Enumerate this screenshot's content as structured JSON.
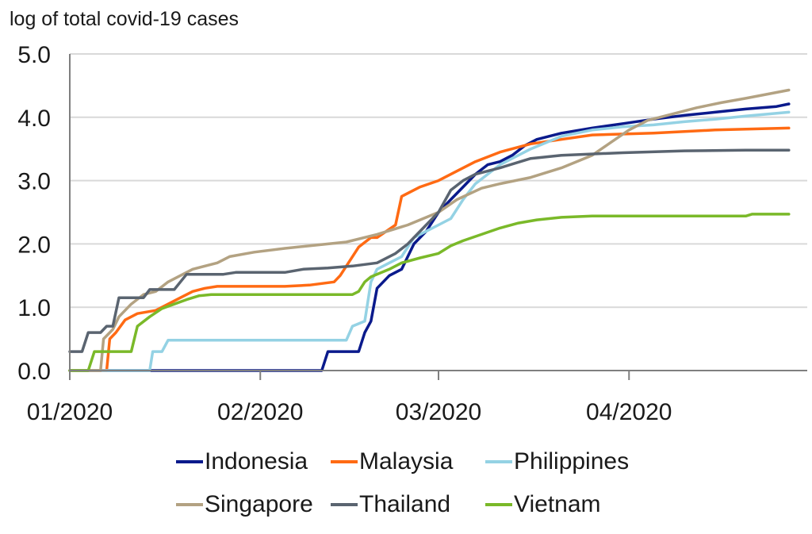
{
  "chart_data": {
    "type": "line",
    "ylabel": "log of total covid-19 cases",
    "xlabel": "",
    "title": "",
    "ylim": [
      0,
      5
    ],
    "yticks": [
      "0.0",
      "1.0",
      "2.0",
      "3.0",
      "4.0",
      "5.0"
    ],
    "x_domain_days": [
      0,
      120
    ],
    "xticks": [
      {
        "label": "01/2020",
        "day": 0
      },
      {
        "label": "02/2020",
        "day": 31
      },
      {
        "label": "03/2020",
        "day": 60
      },
      {
        "label": "04/2020",
        "day": 91
      }
    ],
    "grid": true,
    "legend_position": "bottom",
    "series": [
      {
        "name": "Indonesia",
        "color": "#0a1a8c",
        "points": [
          [
            0,
            0
          ],
          [
            41,
            0
          ],
          [
            42,
            0.3
          ],
          [
            47,
            0.3
          ],
          [
            48,
            0.6
          ],
          [
            49,
            0.78
          ],
          [
            50,
            1.3
          ],
          [
            52,
            1.5
          ],
          [
            54,
            1.6
          ],
          [
            56,
            2.0
          ],
          [
            58,
            2.2
          ],
          [
            60,
            2.5
          ],
          [
            62,
            2.7
          ],
          [
            64,
            2.9
          ],
          [
            66,
            3.1
          ],
          [
            68,
            3.25
          ],
          [
            70,
            3.3
          ],
          [
            72,
            3.4
          ],
          [
            74,
            3.55
          ],
          [
            76,
            3.65
          ],
          [
            80,
            3.75
          ],
          [
            85,
            3.83
          ],
          [
            90,
            3.9
          ],
          [
            95,
            3.97
          ],
          [
            100,
            4.03
          ],
          [
            105,
            4.08
          ],
          [
            110,
            4.13
          ],
          [
            115,
            4.17
          ],
          [
            117,
            4.21
          ]
        ]
      },
      {
        "name": "Malaysia",
        "color": "#ff6a13",
        "points": [
          [
            0,
            0
          ],
          [
            6,
            0
          ],
          [
            6.5,
            0.5
          ],
          [
            7.5,
            0.6
          ],
          [
            9,
            0.8
          ],
          [
            11,
            0.9
          ],
          [
            14,
            0.95
          ],
          [
            16,
            1.05
          ],
          [
            18,
            1.15
          ],
          [
            20,
            1.25
          ],
          [
            22,
            1.3
          ],
          [
            24,
            1.33
          ],
          [
            35,
            1.33
          ],
          [
            39,
            1.35
          ],
          [
            43,
            1.4
          ],
          [
            44,
            1.5
          ],
          [
            45,
            1.65
          ],
          [
            47,
            1.95
          ],
          [
            49,
            2.1
          ],
          [
            50,
            2.1
          ],
          [
            53,
            2.3
          ],
          [
            54,
            2.75
          ],
          [
            57,
            2.9
          ],
          [
            60,
            3.0
          ],
          [
            63,
            3.15
          ],
          [
            66,
            3.3
          ],
          [
            70,
            3.45
          ],
          [
            75,
            3.58
          ],
          [
            80,
            3.65
          ],
          [
            85,
            3.72
          ],
          [
            95,
            3.75
          ],
          [
            105,
            3.8
          ],
          [
            117,
            3.83
          ]
        ]
      },
      {
        "name": "Philippines",
        "color": "#94d2e4",
        "points": [
          [
            0,
            0
          ],
          [
            13,
            0
          ],
          [
            13.5,
            0.3
          ],
          [
            15,
            0.3
          ],
          [
            16,
            0.48
          ],
          [
            45,
            0.48
          ],
          [
            46,
            0.7
          ],
          [
            48,
            0.78
          ],
          [
            49,
            1.4
          ],
          [
            50,
            1.6
          ],
          [
            52,
            1.7
          ],
          [
            54,
            1.8
          ],
          [
            56,
            2.1
          ],
          [
            58,
            2.2
          ],
          [
            60,
            2.3
          ],
          [
            62,
            2.4
          ],
          [
            64,
            2.7
          ],
          [
            66,
            2.95
          ],
          [
            70,
            3.25
          ],
          [
            75,
            3.5
          ],
          [
            80,
            3.7
          ],
          [
            85,
            3.8
          ],
          [
            90,
            3.85
          ],
          [
            95,
            3.88
          ],
          [
            100,
            3.93
          ],
          [
            105,
            3.97
          ],
          [
            110,
            4.02
          ],
          [
            117,
            4.08
          ]
        ]
      },
      {
        "name": "Singapore",
        "color": "#b3a282",
        "points": [
          [
            0,
            0
          ],
          [
            5,
            0
          ],
          [
            5.5,
            0.5
          ],
          [
            7,
            0.65
          ],
          [
            8,
            0.85
          ],
          [
            10,
            1.05
          ],
          [
            12,
            1.2
          ],
          [
            14,
            1.25
          ],
          [
            16,
            1.4
          ],
          [
            18,
            1.5
          ],
          [
            20,
            1.6
          ],
          [
            24,
            1.7
          ],
          [
            26,
            1.8
          ],
          [
            30,
            1.87
          ],
          [
            35,
            1.93
          ],
          [
            40,
            1.98
          ],
          [
            45,
            2.03
          ],
          [
            50,
            2.15
          ],
          [
            55,
            2.3
          ],
          [
            60,
            2.5
          ],
          [
            63,
            2.7
          ],
          [
            67,
            2.88
          ],
          [
            70,
            2.95
          ],
          [
            75,
            3.05
          ],
          [
            80,
            3.2
          ],
          [
            85,
            3.4
          ],
          [
            88,
            3.6
          ],
          [
            91,
            3.8
          ],
          [
            94,
            3.95
          ],
          [
            98,
            4.05
          ],
          [
            102,
            4.15
          ],
          [
            106,
            4.23
          ],
          [
            110,
            4.3
          ],
          [
            117,
            4.43
          ]
        ]
      },
      {
        "name": "Thailand",
        "color": "#5a6470",
        "points": [
          [
            0,
            0.3
          ],
          [
            2,
            0.3
          ],
          [
            3,
            0.6
          ],
          [
            5,
            0.6
          ],
          [
            6,
            0.7
          ],
          [
            7,
            0.7
          ],
          [
            8,
            1.15
          ],
          [
            12,
            1.15
          ],
          [
            13,
            1.28
          ],
          [
            17,
            1.28
          ],
          [
            18,
            1.4
          ],
          [
            19,
            1.52
          ],
          [
            25,
            1.52
          ],
          [
            27,
            1.55
          ],
          [
            35,
            1.55
          ],
          [
            38,
            1.6
          ],
          [
            42,
            1.62
          ],
          [
            46,
            1.65
          ],
          [
            50,
            1.7
          ],
          [
            53,
            1.85
          ],
          [
            55,
            2.0
          ],
          [
            57,
            2.2
          ],
          [
            60,
            2.5
          ],
          [
            62,
            2.85
          ],
          [
            64,
            3.0
          ],
          [
            66,
            3.1
          ],
          [
            70,
            3.2
          ],
          [
            75,
            3.35
          ],
          [
            80,
            3.4
          ],
          [
            90,
            3.44
          ],
          [
            100,
            3.47
          ],
          [
            110,
            3.48
          ],
          [
            117,
            3.48
          ]
        ]
      },
      {
        "name": "Vietnam",
        "color": "#7ab929",
        "points": [
          [
            0,
            0
          ],
          [
            3,
            0
          ],
          [
            4,
            0.3
          ],
          [
            10,
            0.3
          ],
          [
            11,
            0.7
          ],
          [
            13,
            0.85
          ],
          [
            15,
            0.98
          ],
          [
            17,
            1.05
          ],
          [
            19,
            1.12
          ],
          [
            21,
            1.18
          ],
          [
            23,
            1.2
          ],
          [
            46,
            1.2
          ],
          [
            47,
            1.25
          ],
          [
            48,
            1.4
          ],
          [
            49,
            1.48
          ],
          [
            52,
            1.6
          ],
          [
            54,
            1.7
          ],
          [
            57,
            1.78
          ],
          [
            60,
            1.85
          ],
          [
            62,
            1.97
          ],
          [
            64,
            2.05
          ],
          [
            67,
            2.15
          ],
          [
            70,
            2.25
          ],
          [
            73,
            2.33
          ],
          [
            76,
            2.38
          ],
          [
            80,
            2.42
          ],
          [
            85,
            2.44
          ],
          [
            90,
            2.44
          ],
          [
            110,
            2.44
          ],
          [
            111,
            2.47
          ],
          [
            117,
            2.47
          ]
        ]
      }
    ]
  }
}
